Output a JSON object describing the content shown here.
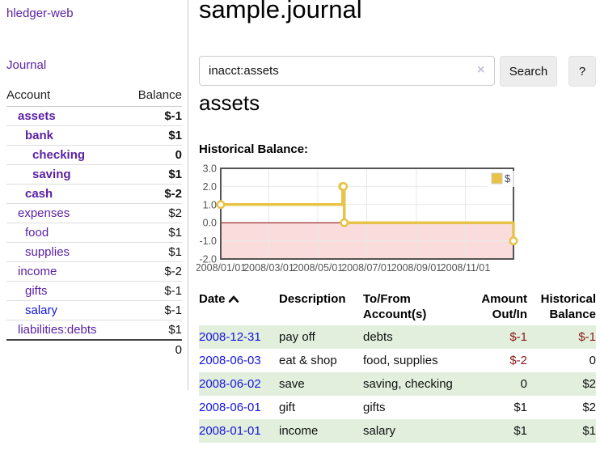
{
  "sidebar": {
    "brand": "hledger-web",
    "nav": {
      "journal": "Journal"
    },
    "accounts_table": {
      "headers": [
        "Account",
        "Balance"
      ],
      "rows": [
        {
          "name": "assets",
          "balance": "$-1",
          "indent": 1,
          "bold": true,
          "neg": "strong"
        },
        {
          "name": "bank",
          "balance": "$1",
          "indent": 2,
          "bold": true
        },
        {
          "name": "checking",
          "balance": "0",
          "indent": 3,
          "bold": true
        },
        {
          "name": "saving",
          "balance": "$1",
          "indent": 3,
          "bold": true
        },
        {
          "name": "cash",
          "balance": "$-2",
          "indent": 2,
          "bold": true,
          "neg": "strong"
        },
        {
          "name": "expenses",
          "balance": "$2",
          "indent": 1
        },
        {
          "name": "food",
          "balance": "$1",
          "indent": 2
        },
        {
          "name": "supplies",
          "balance": "$1",
          "indent": 2
        },
        {
          "name": "income",
          "balance": "$-2",
          "indent": 1,
          "neg": "soft"
        },
        {
          "name": "gifts",
          "balance": "$-1",
          "indent": 2,
          "neg": "soft"
        },
        {
          "name": "salary",
          "balance": "$-1",
          "indent": 2,
          "neg": "soft",
          "blue_link": true
        },
        {
          "name": "liabilities:debts",
          "balance": "$1",
          "indent": 1
        }
      ],
      "total": "0"
    }
  },
  "header": {
    "title": "sample.journal"
  },
  "search": {
    "value": "inacct:assets",
    "clear_icon": "×",
    "button": "Search",
    "help_button": "?"
  },
  "account_page": {
    "heading": "assets",
    "chart_label": "Historical Balance:"
  },
  "chart_data": {
    "type": "line",
    "step": true,
    "title": "Historical Balance",
    "xlabel": "",
    "ylabel": "",
    "xlim": [
      "2008-01-01",
      "2008-12-31"
    ],
    "ylim": [
      -2,
      3
    ],
    "grid": true,
    "legend_position": "top-right",
    "series": [
      {
        "name": "$",
        "points": [
          [
            "2008-01-01",
            1
          ],
          [
            "2008-06-01",
            2
          ],
          [
            "2008-06-02",
            2
          ],
          [
            "2008-06-03",
            0
          ],
          [
            "2008-12-31",
            -1
          ]
        ]
      }
    ],
    "yticks": [
      {
        "v": 3,
        "label": "3.0"
      },
      {
        "v": 2,
        "label": "2.0"
      },
      {
        "v": 1,
        "label": "1.0"
      },
      {
        "v": 0,
        "label": "0.0"
      },
      {
        "v": -1,
        "label": "-1.0"
      },
      {
        "v": -2,
        "label": "-2.0"
      }
    ],
    "xticks": [
      {
        "date": "2008-01-01",
        "label": "2008/01/01"
      },
      {
        "date": "2008-03-01",
        "label": "2008/03/01"
      },
      {
        "date": "2008-05-01",
        "label": "2008/05/01"
      },
      {
        "date": "2008-07-01",
        "label": "2008/07/01"
      },
      {
        "date": "2008-09-01",
        "label": "2008/09/01"
      },
      {
        "date": "2008-11-01",
        "label": "2008/11/01"
      }
    ]
  },
  "register_table": {
    "headers": [
      "Date",
      "Description",
      "To/From Account(s)",
      "Amount Out/In",
      "Historical Balance"
    ],
    "rows": [
      {
        "date": "2008-12-31",
        "description": "pay off",
        "accounts": "debts",
        "amount": "$-1",
        "amount_neg": true,
        "balance": "$-1",
        "balance_neg": true
      },
      {
        "date": "2008-06-03",
        "description": "eat & shop",
        "accounts": "food, supplies",
        "amount": "$-2",
        "amount_neg": true,
        "balance": "0"
      },
      {
        "date": "2008-06-02",
        "description": "save",
        "accounts": "saving, checking",
        "amount": "0",
        "balance": "$2"
      },
      {
        "date": "2008-06-01",
        "description": "gift",
        "accounts": "gifts",
        "amount": "$1",
        "balance": "$2"
      },
      {
        "date": "2008-01-01",
        "description": "income",
        "accounts": "salary",
        "amount": "$1",
        "balance": "$1"
      }
    ]
  },
  "colors": {
    "link_purple": "#5b21a3",
    "link_blue": "#1414dd",
    "negative_strong": "#8b1a1a",
    "negative_soft": "#bd7277",
    "stripe_green": "#e2efdd",
    "chart_series": "#e8c348",
    "chart_marker_fill": "#ffffff",
    "chart_negative_fill": "#fadcdc",
    "chart_zero_line": "#8b0000",
    "chart_border": "#545454",
    "chart_grid": "#e8e8e8"
  }
}
